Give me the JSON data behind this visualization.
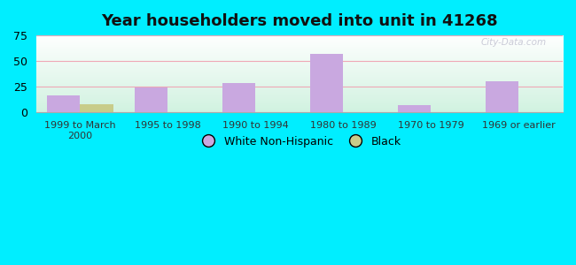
{
  "title": "Year householders moved into unit in 41268",
  "categories": [
    "1999 to March\n2000",
    "1995 to 1998",
    "1990 to 1994",
    "1980 to 1989",
    "1970 to 1979",
    "1969 or earlier"
  ],
  "white_values": [
    17,
    24,
    29,
    57,
    7,
    30
  ],
  "black_values": [
    8,
    0,
    0,
    0,
    0,
    0
  ],
  "white_color": "#c9a8e0",
  "black_color": "#c8cc8a",
  "bg_outer": "#00eeff",
  "ylim": [
    0,
    75
  ],
  "yticks": [
    0,
    25,
    50,
    75
  ],
  "bar_width": 0.38,
  "legend_white": "White Non-Hispanic",
  "legend_black": "Black",
  "grid_color": "#f0a0b0",
  "watermark": "City-Data.com"
}
